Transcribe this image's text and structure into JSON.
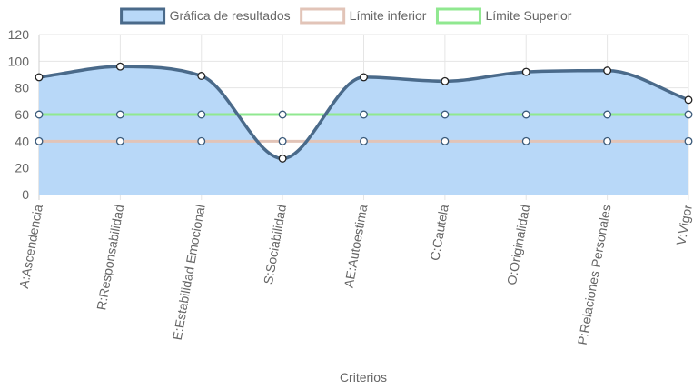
{
  "chart_data": {
    "type": "line",
    "xlabel": "Criterios",
    "ylabel": "",
    "ylim": [
      0,
      120
    ],
    "y_ticks": [
      0,
      20,
      40,
      60,
      80,
      100,
      120
    ],
    "grid": true,
    "legend_position": "top",
    "categories": [
      "A:Ascendencia",
      "R:Responsabilidad",
      "E:Estabilidad Emocional",
      "S:Sociabilidad",
      "AE:Autoestima",
      "C:Cautela",
      "O:Originalidad",
      "P:Relaciones Personales",
      "V:Vigor"
    ],
    "series": [
      {
        "name": "Gráfica de resultados",
        "values": [
          88,
          96,
          89,
          27,
          88,
          85,
          92,
          93,
          71
        ],
        "line_color": "#4a6a8a",
        "fill_color": "#b8d8f8",
        "filled": true
      },
      {
        "name": "Límite inferior",
        "values": [
          40,
          40,
          40,
          40,
          40,
          40,
          40,
          40,
          40
        ],
        "line_color": "#e2c4b8",
        "filled": false
      },
      {
        "name": "Límite Superior",
        "values": [
          60,
          60,
          60,
          60,
          60,
          60,
          60,
          60,
          60
        ],
        "line_color": "#90e890",
        "filled": false
      }
    ]
  }
}
